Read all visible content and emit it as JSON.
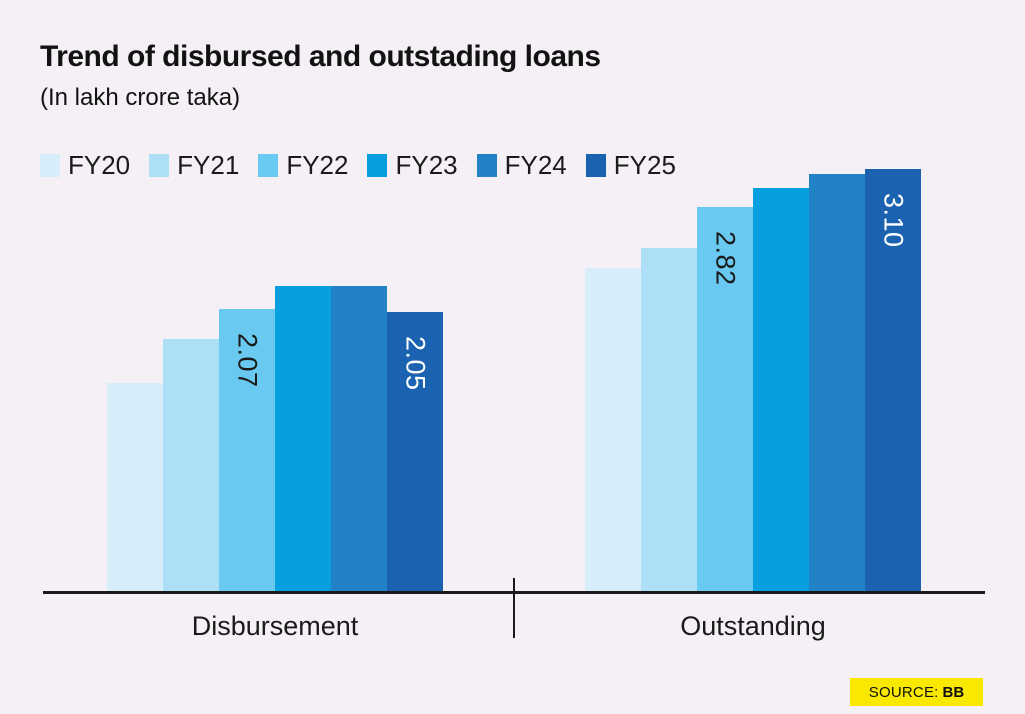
{
  "header": {
    "title": "Trend of disbursed and outstading loans",
    "subtitle": "(In lakh crore taka)"
  },
  "legend": [
    {
      "label": "FY20",
      "color": "#d7edf9"
    },
    {
      "label": "FY21",
      "color": "#addff6"
    },
    {
      "label": "FY22",
      "color": "#6ac9f1"
    },
    {
      "label": "FY23",
      "color": "#089fe0"
    },
    {
      "label": "FY24",
      "color": "#2182c5"
    },
    {
      "label": "FY25",
      "color": "#1b63b0"
    }
  ],
  "chart_data": {
    "type": "bar",
    "title": "Trend of disbursed and outstading loans",
    "subtitle": "(In lakh crore taka)",
    "unit": "lakh crore taka",
    "categories": [
      "Disbursement",
      "Outstanding"
    ],
    "series": [
      {
        "name": "FY20",
        "color": "#d7edf9",
        "values": [
          1.53,
          2.37
        ]
      },
      {
        "name": "FY21",
        "color": "#addff6",
        "values": [
          1.85,
          2.52
        ]
      },
      {
        "name": "FY22",
        "color": "#6ac9f1",
        "values": [
          2.07,
          2.82
        ]
      },
      {
        "name": "FY23",
        "color": "#089fe0",
        "values": [
          2.24,
          2.96
        ]
      },
      {
        "name": "FY24",
        "color": "#2182c5",
        "values": [
          2.24,
          3.06
        ]
      },
      {
        "name": "FY25",
        "color": "#1b63b0",
        "values": [
          2.05,
          3.1
        ]
      }
    ],
    "data_labels": [
      {
        "group": "Disbursement",
        "series": "FY22",
        "text": "2.07",
        "color": "#1a1a1a"
      },
      {
        "group": "Disbursement",
        "series": "FY25",
        "text": "2.05",
        "color": "#ffffff"
      },
      {
        "group": "Outstanding",
        "series": "FY22",
        "text": "2.82",
        "color": "#1a1a1a"
      },
      {
        "group": "Outstanding",
        "series": "FY25",
        "text": "3.10",
        "color": "#ffffff"
      }
    ],
    "xlabel": "",
    "ylabel": "",
    "ylim": [
      0,
      3.5
    ],
    "grid": false,
    "axis_shown": "x-only",
    "legend_position": "top"
  },
  "footer": {
    "source_label": "SOURCE:",
    "source_value": "BB"
  },
  "colors": {
    "background": "#f4f0f5",
    "axis": "#1a1a1a",
    "badge_background": "#f9e800",
    "text": "#121212"
  }
}
